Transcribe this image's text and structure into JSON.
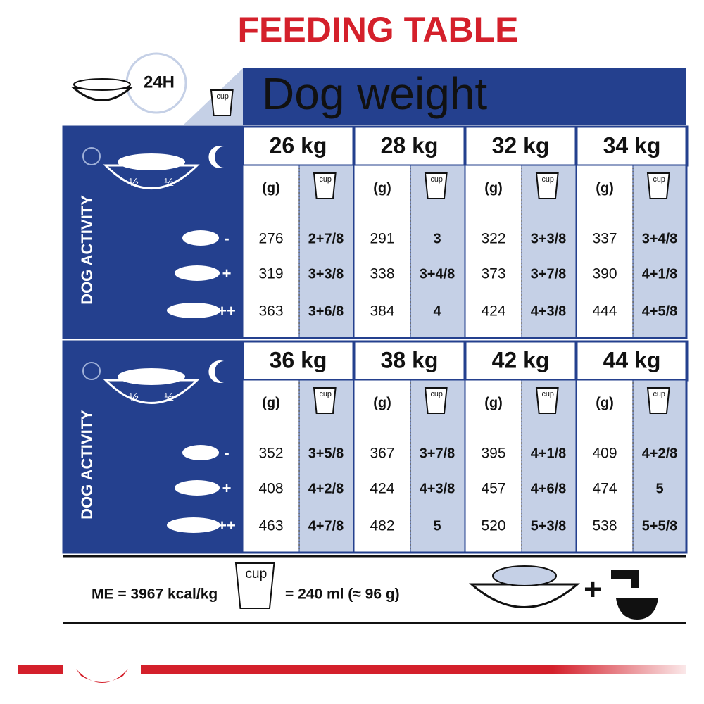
{
  "title": "FEEDING TABLE",
  "clock_label": "24H",
  "cup_icon_label": "cup",
  "header": "Dog weight",
  "activity_label": "DOG ACTIVITY",
  "half_label": "½",
  "unit_grams": "(g)",
  "activity_levels": [
    "-",
    "+",
    "++"
  ],
  "sections": [
    {
      "weights": [
        {
          "label": "26 kg",
          "rows": [
            [
              276,
              "2+7/8"
            ],
            [
              319,
              "3+3/8"
            ],
            [
              363,
              "3+6/8"
            ]
          ]
        },
        {
          "label": "28 kg",
          "rows": [
            [
              291,
              "3"
            ],
            [
              338,
              "3+4/8"
            ],
            [
              384,
              "4"
            ]
          ]
        },
        {
          "label": "32 kg",
          "rows": [
            [
              322,
              "3+3/8"
            ],
            [
              373,
              "3+7/8"
            ],
            [
              424,
              "4+3/8"
            ]
          ]
        },
        {
          "label": "34 kg",
          "rows": [
            [
              337,
              "3+4/8"
            ],
            [
              390,
              "4+1/8"
            ],
            [
              444,
              "4+5/8"
            ]
          ]
        }
      ]
    },
    {
      "weights": [
        {
          "label": "36 kg",
          "rows": [
            [
              352,
              "3+5/8"
            ],
            [
              408,
              "4+2/8"
            ],
            [
              463,
              "4+7/8"
            ]
          ]
        },
        {
          "label": "38 kg",
          "rows": [
            [
              367,
              "3+7/8"
            ],
            [
              424,
              "4+3/8"
            ],
            [
              482,
              "5"
            ]
          ]
        },
        {
          "label": "42 kg",
          "rows": [
            [
              395,
              "4+1/8"
            ],
            [
              457,
              "4+6/8"
            ],
            [
              520,
              "5+3/8"
            ]
          ]
        },
        {
          "label": "44 kg",
          "rows": [
            [
              409,
              "4+2/8"
            ],
            [
              474,
              "5"
            ],
            [
              538,
              "5+5/8"
            ]
          ]
        }
      ]
    }
  ],
  "footer": {
    "energy": "ME = 3967 kcal/kg",
    "cup_equivalence": "= 240 ml (≈ 96 g)",
    "plus": "+"
  }
}
